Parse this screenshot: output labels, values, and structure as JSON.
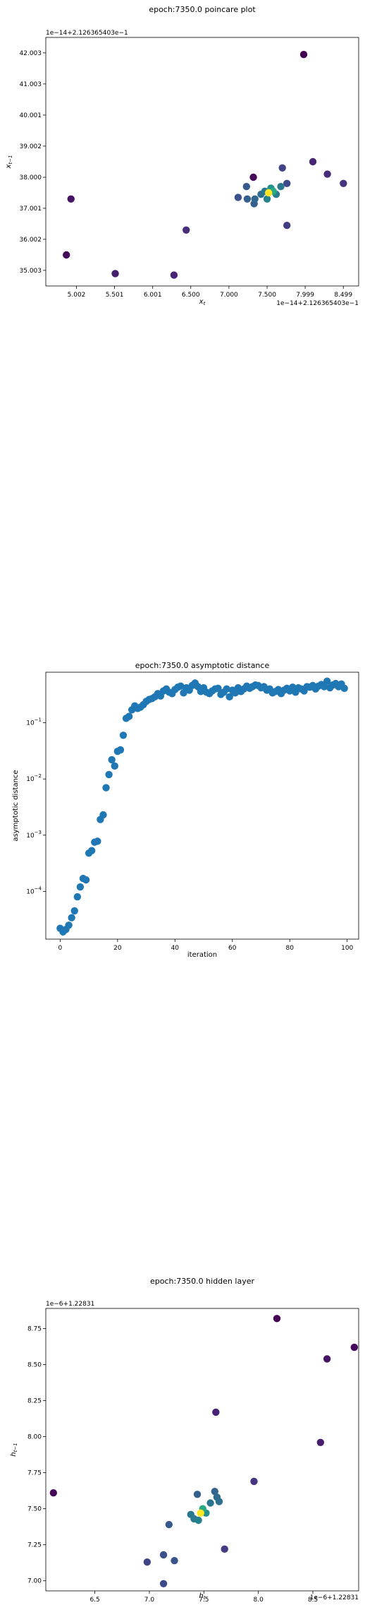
{
  "chart_data": [
    {
      "type": "scatter",
      "title": "epoch:7350.0 poincare plot",
      "xlabel": "$x_t$",
      "ylabel": "$x_{t-1}$",
      "offset_x_text": "1e−14+2.126365403e−1",
      "offset_y_text": "1e−14+2.126365403e−1",
      "xlim": [
        4.6,
        8.7
      ],
      "ylim": [
        34.5,
        42.5
      ],
      "xticks": [
        5.002,
        5.501,
        6.001,
        6.5,
        7.0,
        7.5,
        7.999,
        8.499
      ],
      "xtick_labels": [
        "5.002",
        "5.501",
        "6.001",
        "6.500",
        "7.000",
        "7.500",
        "7.999",
        "8.499"
      ],
      "yticks": [
        35.003,
        36.002,
        37.001,
        38.0,
        39.002,
        40.001,
        41.003,
        42.003
      ],
      "ytick_labels": [
        "35.003",
        "36.002",
        "37.001",
        "38.000",
        "39.002",
        "40.001",
        "41.003",
        "42.003"
      ],
      "points": [
        {
          "x": 4.87,
          "y": 35.5,
          "c": 0.02
        },
        {
          "x": 4.93,
          "y": 37.3,
          "c": 0.05
        },
        {
          "x": 5.51,
          "y": 34.9,
          "c": 0.08
        },
        {
          "x": 6.28,
          "y": 34.85,
          "c": 0.1
        },
        {
          "x": 6.44,
          "y": 36.3,
          "c": 0.13
        },
        {
          "x": 7.98,
          "y": 41.95,
          "c": 0.0
        },
        {
          "x": 7.32,
          "y": 38.0,
          "c": 0.02
        },
        {
          "x": 8.1,
          "y": 38.5,
          "c": 0.1
        },
        {
          "x": 8.29,
          "y": 38.1,
          "c": 0.12
        },
        {
          "x": 8.5,
          "y": 37.8,
          "c": 0.15
        },
        {
          "x": 7.76,
          "y": 36.45,
          "c": 0.18
        },
        {
          "x": 7.7,
          "y": 38.3,
          "c": 0.2
        },
        {
          "x": 7.76,
          "y": 37.8,
          "c": 0.22
        },
        {
          "x": 7.12,
          "y": 37.35,
          "c": 0.25
        },
        {
          "x": 7.23,
          "y": 37.7,
          "c": 0.28
        },
        {
          "x": 7.24,
          "y": 37.3,
          "c": 0.3
        },
        {
          "x": 7.33,
          "y": 37.15,
          "c": 0.3
        },
        {
          "x": 7.34,
          "y": 37.3,
          "c": 0.33
        },
        {
          "x": 7.42,
          "y": 37.45,
          "c": 0.36
        },
        {
          "x": 7.47,
          "y": 37.55,
          "c": 0.4
        },
        {
          "x": 7.68,
          "y": 37.7,
          "c": 0.4
        },
        {
          "x": 7.62,
          "y": 37.45,
          "c": 0.42
        },
        {
          "x": 7.5,
          "y": 37.3,
          "c": 0.45
        },
        {
          "x": 7.55,
          "y": 37.65,
          "c": 0.5
        },
        {
          "x": 7.58,
          "y": 37.55,
          "c": 0.6
        },
        {
          "x": 7.52,
          "y": 37.5,
          "c": 1.0
        }
      ]
    },
    {
      "type": "scatter",
      "title": "epoch:7350.0 asymptotic distance",
      "xlabel": "iteration",
      "ylabel": "asymptotic distance",
      "yscale": "log",
      "xlim": [
        -5,
        104
      ],
      "ylim_log10": [
        -4.85,
        -0.1
      ],
      "xticks": [
        0,
        20,
        40,
        60,
        80,
        100
      ],
      "xtick_labels": [
        "0",
        "20",
        "40",
        "60",
        "80",
        "100"
      ],
      "yticks_log10": [
        -4,
        -3,
        -2,
        -1
      ],
      "color": "#1f77b4",
      "x": [
        0,
        1,
        2,
        3,
        4,
        5,
        6,
        7,
        8,
        9,
        10,
        11,
        12,
        13,
        14,
        15,
        16,
        17,
        18,
        19,
        20,
        21,
        22,
        23,
        24,
        25,
        26,
        27,
        28,
        29,
        30,
        31,
        32,
        33,
        34,
        35,
        36,
        37,
        38,
        39,
        40,
        41,
        42,
        43,
        44,
        45,
        46,
        47,
        48,
        49,
        50,
        51,
        52,
        53,
        54,
        55,
        56,
        57,
        58,
        59,
        60,
        61,
        62,
        63,
        64,
        65,
        66,
        67,
        68,
        69,
        70,
        71,
        72,
        73,
        74,
        75,
        76,
        77,
        78,
        79,
        80,
        81,
        82,
        83,
        84,
        85,
        86,
        87,
        88,
        89,
        90,
        91,
        92,
        93,
        94,
        95,
        96,
        97,
        98,
        99
      ],
      "y": [
        2.2e-05,
        1.9e-05,
        2.1e-05,
        2.5e-05,
        3.4e-05,
        4.5e-05,
        8e-05,
        0.00012,
        0.00017,
        0.00016,
        0.00048,
        0.00053,
        0.00075,
        0.00078,
        0.0019,
        0.0023,
        0.007,
        0.012,
        0.022,
        0.017,
        0.031,
        0.033,
        0.06,
        0.12,
        0.13,
        0.17,
        0.2,
        0.18,
        0.19,
        0.21,
        0.24,
        0.26,
        0.27,
        0.29,
        0.33,
        0.3,
        0.37,
        0.4,
        0.35,
        0.33,
        0.39,
        0.43,
        0.45,
        0.34,
        0.42,
        0.38,
        0.46,
        0.51,
        0.44,
        0.36,
        0.42,
        0.35,
        0.33,
        0.37,
        0.4,
        0.41,
        0.32,
        0.35,
        0.4,
        0.29,
        0.38,
        0.34,
        0.42,
        0.36,
        0.4,
        0.45,
        0.41,
        0.44,
        0.47,
        0.46,
        0.42,
        0.44,
        0.38,
        0.4,
        0.34,
        0.36,
        0.39,
        0.33,
        0.38,
        0.41,
        0.37,
        0.43,
        0.35,
        0.42,
        0.4,
        0.37,
        0.44,
        0.43,
        0.46,
        0.4,
        0.45,
        0.48,
        0.44,
        0.55,
        0.42,
        0.47,
        0.5,
        0.44,
        0.49,
        0.41
      ]
    },
    {
      "type": "scatter",
      "title": "epoch:7350.0 hidden layer",
      "xlabel": "$h_t$",
      "ylabel": "$h_{t-1}$",
      "offset_x_text": "1e−6+1.22831",
      "offset_y_text": "1e−6+1.22831",
      "xlim": [
        6.05,
        8.92
      ],
      "ylim": [
        6.93,
        8.89
      ],
      "xticks": [
        6.5,
        7.0,
        7.5,
        8.0,
        8.5
      ],
      "xtick_labels": [
        "6.5",
        "7.0",
        "7.5",
        "8.0",
        "8.5"
      ],
      "yticks": [
        7.0,
        7.25,
        7.5,
        7.75,
        8.0,
        8.25,
        8.5,
        8.75
      ],
      "ytick_labels": [
        "7.00",
        "7.25",
        "7.50",
        "7.75",
        "8.00",
        "8.25",
        "8.50",
        "8.75"
      ],
      "points": [
        {
          "x": 6.12,
          "y": 7.61,
          "c": 0.02
        },
        {
          "x": 8.17,
          "y": 8.82,
          "c": 0.0
        },
        {
          "x": 8.88,
          "y": 8.62,
          "c": 0.03
        },
        {
          "x": 8.63,
          "y": 8.54,
          "c": 0.05
        },
        {
          "x": 8.57,
          "y": 7.96,
          "c": 0.08
        },
        {
          "x": 7.61,
          "y": 8.17,
          "c": 0.1
        },
        {
          "x": 7.96,
          "y": 7.69,
          "c": 0.15
        },
        {
          "x": 7.69,
          "y": 7.22,
          "c": 0.18
        },
        {
          "x": 6.98,
          "y": 7.13,
          "c": 0.2
        },
        {
          "x": 7.13,
          "y": 6.98,
          "c": 0.22
        },
        {
          "x": 7.13,
          "y": 7.18,
          "c": 0.24
        },
        {
          "x": 7.23,
          "y": 7.14,
          "c": 0.26
        },
        {
          "x": 7.18,
          "y": 7.39,
          "c": 0.28
        },
        {
          "x": 7.44,
          "y": 7.6,
          "c": 0.3
        },
        {
          "x": 7.6,
          "y": 7.62,
          "c": 0.32
        },
        {
          "x": 7.62,
          "y": 7.58,
          "c": 0.34
        },
        {
          "x": 7.64,
          "y": 7.55,
          "c": 0.36
        },
        {
          "x": 7.56,
          "y": 7.54,
          "c": 0.38
        },
        {
          "x": 7.38,
          "y": 7.46,
          "c": 0.4
        },
        {
          "x": 7.41,
          "y": 7.43,
          "c": 0.42
        },
        {
          "x": 7.45,
          "y": 7.42,
          "c": 0.44
        },
        {
          "x": 7.52,
          "y": 7.47,
          "c": 0.5
        },
        {
          "x": 7.49,
          "y": 7.5,
          "c": 0.6
        },
        {
          "x": 7.47,
          "y": 7.47,
          "c": 1.0
        }
      ]
    }
  ]
}
